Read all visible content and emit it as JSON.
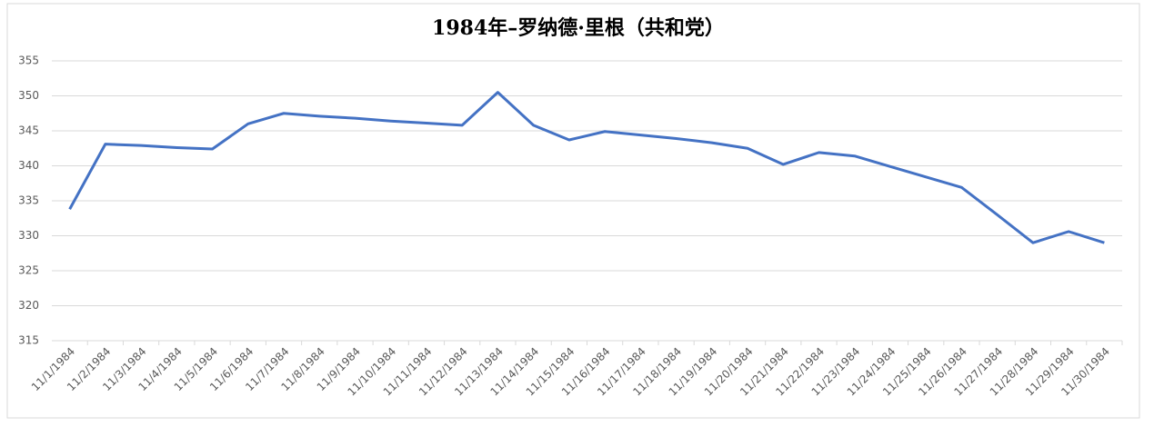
{
  "chart_data": {
    "type": "line",
    "title": "1984年–罗纳德·里根（共和党）",
    "categories": [
      "11/1/1984",
      "11/2/1984",
      "11/3/1984",
      "11/4/1984",
      "11/5/1984",
      "11/6/1984",
      "11/7/1984",
      "11/8/1984",
      "11/9/1984",
      "11/10/1984",
      "11/11/1984",
      "11/12/1984",
      "11/13/1984",
      "11/14/1984",
      "11/15/1984",
      "11/16/1984",
      "11/17/1984",
      "11/18/1984",
      "11/19/1984",
      "11/20/1984",
      "11/21/1984",
      "11/22/1984",
      "11/23/1984",
      "11/24/1984",
      "11/25/1984",
      "11/26/1984",
      "11/27/1984",
      "11/28/1984",
      "11/29/1984",
      "11/30/1984"
    ],
    "values": [
      333.8,
      343.1,
      342.9,
      342.6,
      342.4,
      346.0,
      347.5,
      347.1,
      346.8,
      346.4,
      346.1,
      345.8,
      350.5,
      345.8,
      343.7,
      344.9,
      344.4,
      343.9,
      343.3,
      342.5,
      340.2,
      341.9,
      341.4,
      339.9,
      338.4,
      336.9,
      333.0,
      329.0,
      330.6,
      329.0
    ],
    "color": "#4472c4",
    "ylim": [
      315,
      355
    ],
    "yticks": [
      315,
      320,
      325,
      330,
      335,
      340,
      345,
      350,
      355
    ],
    "grid": true
  }
}
